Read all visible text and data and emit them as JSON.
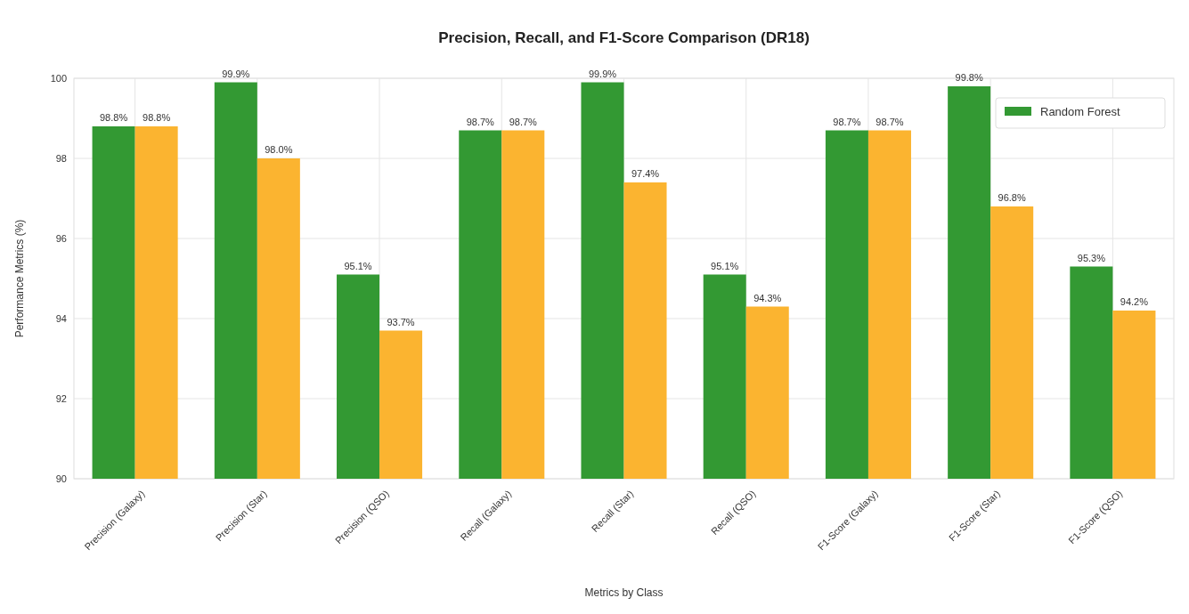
{
  "chart_data": {
    "type": "bar",
    "title": "Precision, Recall, and F1-Score Comparison (DR18)",
    "xlabel": "Metrics by Class",
    "ylabel": "Performance Metrics (%)",
    "categories": [
      "Precision (Galaxy)",
      "Precision (Star)",
      "Precision (QSO)",
      "Recall (Galaxy)",
      "Recall (Star)",
      "Recall (QSO)",
      "F1-Score (Galaxy)",
      "F1-Score (Star)",
      "F1-Score (QSO)"
    ],
    "series": [
      {
        "name": "Random Forest",
        "color": "#339933",
        "values": [
          98.8,
          99.9,
          95.1,
          98.7,
          99.9,
          95.1,
          98.7,
          99.8,
          95.3
        ],
        "value_labels": [
          "98.8%",
          "99.9%",
          "95.1%",
          "98.7%",
          "99.9%",
          "95.1%",
          "98.7%",
          "99.8%",
          "95.3%"
        ]
      },
      {
        "color": "#fbb430",
        "values": [
          98.8,
          98.0,
          93.7,
          98.7,
          97.4,
          94.3,
          98.7,
          96.8,
          94.2
        ],
        "value_labels": [
          "98.8%",
          "98.0%",
          "93.7%",
          "98.7%",
          "97.4%",
          "94.3%",
          "98.7%",
          "96.8%",
          "94.2%"
        ]
      }
    ],
    "ylim": [
      90,
      100
    ],
    "yticks": [
      90,
      92,
      94,
      96,
      98,
      100
    ],
    "grid": true,
    "legend": "top right"
  }
}
